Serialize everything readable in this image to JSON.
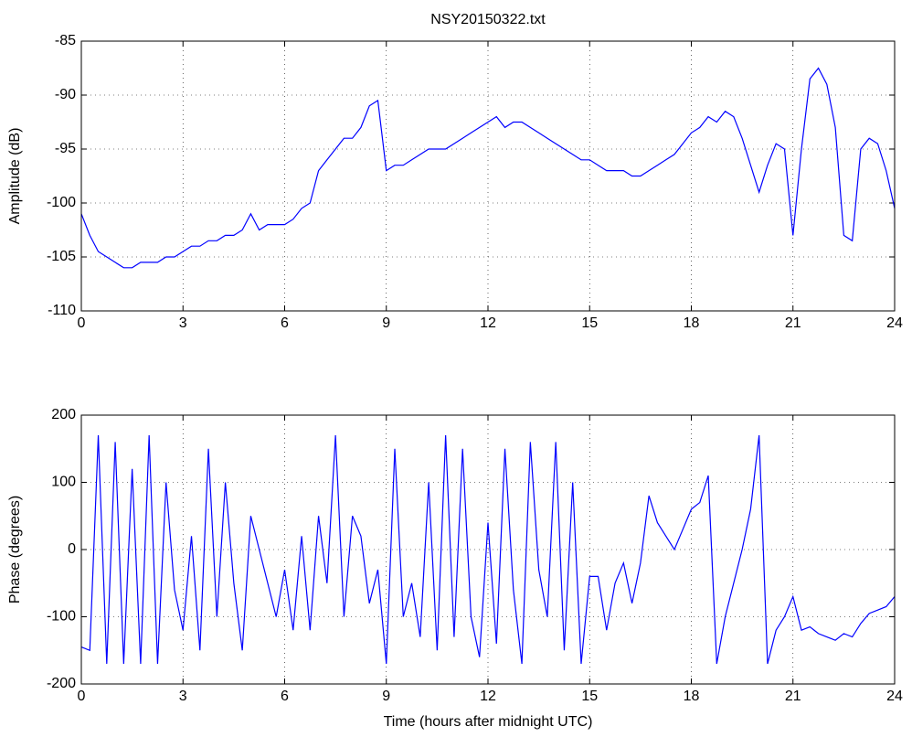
{
  "chart_data": [
    {
      "type": "line",
      "title": "NSY20150322.txt",
      "ylabel": "Amplitude (dB)",
      "grid": true,
      "xlim": [
        0,
        24
      ],
      "xticks": [
        0,
        3,
        6,
        9,
        12,
        15,
        18,
        21,
        24
      ],
      "ylim": [
        -110,
        -85
      ],
      "yticks": [
        -110,
        -105,
        -100,
        -95,
        -90,
        -85
      ],
      "x": [
        0,
        0.25,
        0.5,
        0.75,
        1,
        1.25,
        1.5,
        1.75,
        2,
        2.25,
        2.5,
        2.75,
        3,
        3.25,
        3.5,
        3.75,
        4,
        4.25,
        4.5,
        4.75,
        5,
        5.25,
        5.5,
        5.75,
        6,
        6.25,
        6.5,
        6.75,
        7,
        7.25,
        7.5,
        7.75,
        8,
        8.25,
        8.5,
        8.75,
        9,
        9.25,
        9.5,
        9.75,
        10,
        10.25,
        10.5,
        10.75,
        11,
        11.25,
        11.5,
        11.75,
        12,
        12.25,
        12.5,
        12.75,
        13,
        13.25,
        13.5,
        13.75,
        14,
        14.25,
        14.5,
        14.75,
        15,
        15.25,
        15.5,
        15.75,
        16,
        16.25,
        16.5,
        16.75,
        17,
        17.25,
        17.5,
        17.75,
        18,
        18.25,
        18.5,
        18.75,
        19,
        19.25,
        19.5,
        19.75,
        20,
        20.25,
        20.5,
        20.75,
        21,
        21.25,
        21.5,
        21.75,
        22,
        22.25,
        22.5,
        22.75,
        23,
        23.25,
        23.5,
        23.75,
        24
      ],
      "series": [
        {
          "color": "#0000ff",
          "values": [
            -101,
            -103,
            -104.5,
            -105,
            -105.5,
            -106,
            -106,
            -105.5,
            -105.5,
            -105.5,
            -105,
            -105,
            -104.5,
            -104,
            -104,
            -103.5,
            -103.5,
            -103,
            -103,
            -102.5,
            -101,
            -102.5,
            -102,
            -102,
            -102,
            -101.5,
            -100.5,
            -100,
            -97,
            -96,
            -95,
            -94,
            -94,
            -93,
            -91,
            -90.5,
            -97,
            -96.5,
            -96.5,
            -96,
            -95.5,
            -95,
            -95,
            -95,
            -94.5,
            -94,
            -93.5,
            -93,
            -92.5,
            -92,
            -93,
            -92.5,
            -92.5,
            -93,
            -93.5,
            -94,
            -94.5,
            -95,
            -95.5,
            -96,
            -96,
            -96.5,
            -97,
            -97,
            -97,
            -97.5,
            -97.5,
            -97,
            -96.5,
            -96,
            -95.5,
            -94.5,
            -93.5,
            -93,
            -92,
            -92.5,
            -91.5,
            -92,
            -94,
            -96.5,
            -99,
            -96.5,
            -94.5,
            -95,
            -103,
            -95,
            -88.5,
            -87.5,
            -89,
            -93,
            -103,
            -103.5,
            -95,
            -94,
            -94.5,
            -97,
            -100.5
          ]
        }
      ]
    },
    {
      "type": "line",
      "ylabel": "Phase (degrees)",
      "xlabel": "Time (hours after midnight UTC)",
      "grid": true,
      "xlim": [
        0,
        24
      ],
      "xticks": [
        0,
        3,
        6,
        9,
        12,
        15,
        18,
        21,
        24
      ],
      "ylim": [
        -200,
        200
      ],
      "yticks": [
        -200,
        -100,
        0,
        100,
        200
      ],
      "x": [
        0,
        0.25,
        0.5,
        0.75,
        1,
        1.25,
        1.5,
        1.75,
        2,
        2.25,
        2.5,
        2.75,
        3,
        3.25,
        3.5,
        3.75,
        4,
        4.25,
        4.5,
        4.75,
        5,
        5.25,
        5.5,
        5.75,
        6,
        6.25,
        6.5,
        6.75,
        7,
        7.25,
        7.5,
        7.75,
        8,
        8.25,
        8.5,
        8.75,
        9,
        9.25,
        9.5,
        9.75,
        10,
        10.25,
        10.5,
        10.75,
        11,
        11.25,
        11.5,
        11.75,
        12,
        12.25,
        12.5,
        12.75,
        13,
        13.25,
        13.5,
        13.75,
        14,
        14.25,
        14.5,
        14.75,
        15,
        15.25,
        15.5,
        15.75,
        16,
        16.25,
        16.5,
        16.75,
        17,
        17.25,
        17.5,
        17.75,
        18,
        18.25,
        18.5,
        18.75,
        19,
        19.25,
        19.5,
        19.75,
        20,
        20.25,
        20.5,
        20.75,
        21,
        21.25,
        21.5,
        21.75,
        22,
        22.25,
        22.5,
        22.75,
        23,
        23.25,
        23.5,
        23.75,
        24
      ],
      "series": [
        {
          "color": "#0000ff",
          "values": [
            -145,
            -150,
            170,
            -170,
            160,
            -170,
            120,
            -170,
            170,
            -170,
            100,
            -60,
            -120,
            20,
            -150,
            150,
            -100,
            100,
            -50,
            -150,
            50,
            0,
            -50,
            -100,
            -30,
            -120,
            20,
            -120,
            50,
            -50,
            170,
            -100,
            50,
            20,
            -80,
            -30,
            -170,
            150,
            -100,
            -50,
            -130,
            100,
            -150,
            170,
            -130,
            150,
            -100,
            -160,
            40,
            -140,
            150,
            -60,
            -170,
            160,
            -30,
            -100,
            160,
            -150,
            100,
            -170,
            -40,
            -40,
            -120,
            -50,
            -20,
            -80,
            -20,
            80,
            40,
            20,
            0,
            30,
            60,
            70,
            110,
            -170,
            -100,
            -50,
            0,
            60,
            170,
            -170,
            -120,
            -100,
            -70,
            -120,
            -115,
            -125,
            -130,
            -135,
            -125,
            -130,
            -110,
            -95,
            -90,
            -85,
            -70
          ]
        }
      ]
    }
  ]
}
